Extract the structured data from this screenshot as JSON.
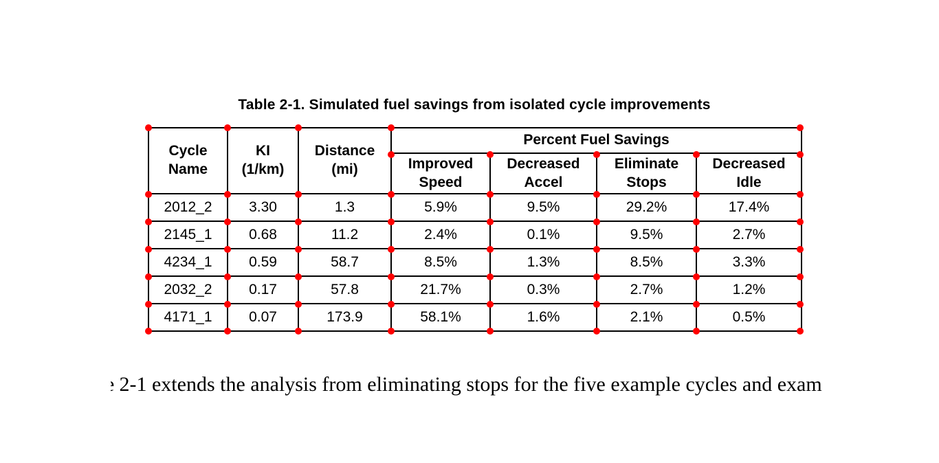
{
  "page": {
    "background": "#ffffff",
    "text_color": "#000000"
  },
  "table": {
    "title": "Table 2-1. Simulated fuel savings from isolated cycle improvements",
    "columns": [
      "Cycle\nName",
      "KI\n(1/km)",
      "Distance\n(mi)"
    ],
    "group_header": "Percent Fuel Savings",
    "sub_columns": [
      "Improved\nSpeed",
      "Decreased\nAccel",
      "Eliminate\nStops",
      "Decreased\nIdle"
    ],
    "rows": [
      [
        "2012_2",
        "3.30",
        "1.3",
        "5.9%",
        "9.5%",
        "29.2%",
        "17.4%"
      ],
      [
        "2145_1",
        "0.68",
        "11.2",
        "2.4%",
        "0.1%",
        "9.5%",
        "2.7%"
      ],
      [
        "4234_1",
        "0.59",
        "58.7",
        "8.5%",
        "1.3%",
        "8.5%",
        "3.3%"
      ],
      [
        "2032_2",
        "0.17",
        "57.8",
        "21.7%",
        "0.3%",
        "2.7%",
        "1.2%"
      ],
      [
        "4171_1",
        "0.07",
        "173.9",
        "58.1%",
        "1.6%",
        "2.1%",
        "0.5%"
      ]
    ],
    "marker_color": "#ff0000",
    "border_color": "#000000"
  },
  "paragraph": {
    "clipped_prefix": "e",
    "text": "2-1 extends the analysis from eliminating stops for the five example cycles and exam"
  }
}
